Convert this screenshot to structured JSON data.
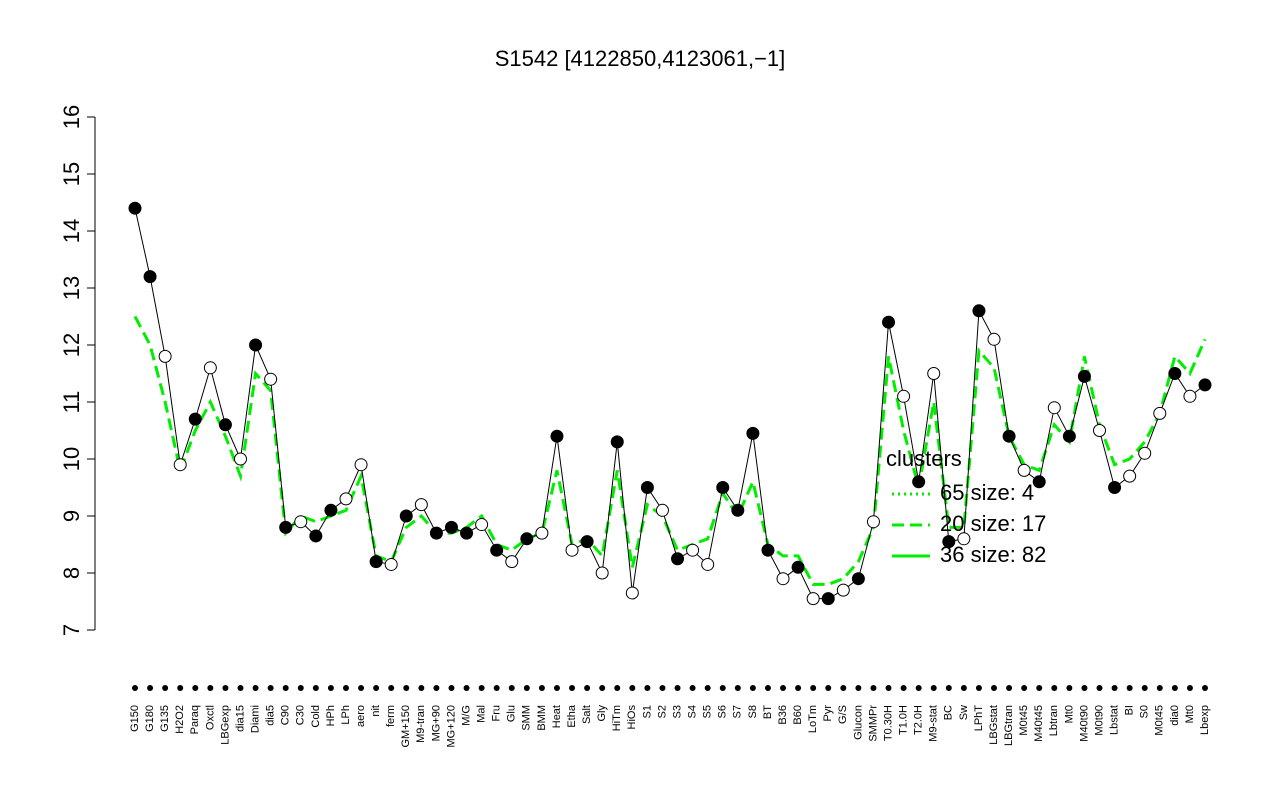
{
  "chart_data": {
    "type": "line",
    "title": "S1542 [4122850,4123061,−1]",
    "categories": [
      "G150",
      "G180",
      "G135",
      "H2O2",
      "Paraq",
      "Oxctl",
      "LBGexp",
      "dia15",
      "Diami",
      "dia5",
      "C90",
      "C30",
      "Cold",
      "HPh",
      "LPh",
      "aero",
      "nit",
      "ferm",
      "GM+150",
      "M9-tran",
      "MG+90",
      "MG+120",
      "M/G",
      "Mal",
      "Fru",
      "Glu",
      "SMM",
      "BMM",
      "Heat",
      "Etha",
      "Salt",
      "Gly",
      "HiTm",
      "HiOs",
      "S1",
      "S2",
      "S3",
      "S4",
      "S5",
      "S6",
      "S7",
      "S8",
      "BT",
      "B36",
      "B60",
      "LoTm",
      "Pyr",
      "G/S",
      "Glucon",
      "SMMPr",
      "T0.30H",
      "T1.0H",
      "T2.0H",
      "M9-stat",
      "BC",
      "Sw",
      "LPhT",
      "LBGstat",
      "LBGtran",
      "M0t45",
      "M40t45",
      "Lbtran",
      "Mt0",
      "M40t90",
      "M0t90",
      "Lbstat",
      "BI",
      "S0",
      "M0t45",
      "dia0",
      "Mt0",
      "Lbexp"
    ],
    "series": [
      {
        "color": "#000000",
        "values": [
          14.4,
          13.2,
          11.8,
          9.9,
          10.7,
          11.6,
          10.6,
          10.0,
          12.0,
          11.4,
          8.8,
          8.9,
          8.65,
          9.1,
          9.3,
          9.9,
          8.2,
          8.15,
          9.0,
          9.2,
          8.7,
          8.8,
          8.7,
          8.85,
          8.4,
          8.2,
          8.6,
          8.7,
          10.4,
          8.4,
          8.55,
          8.0,
          10.3,
          7.65,
          9.5,
          9.1,
          8.25,
          8.4,
          8.15,
          9.5,
          9.1,
          10.45,
          8.4,
          7.9,
          8.1,
          7.55,
          7.55,
          7.7,
          7.9,
          8.9,
          12.4,
          11.1,
          9.6,
          11.5,
          8.55,
          8.6,
          12.6,
          12.1,
          10.4,
          9.8,
          9.6,
          10.9,
          10.4,
          11.45,
          10.5,
          9.5,
          9.7,
          10.1,
          10.8,
          11.5,
          11.1,
          11.3
        ],
        "point_fill": [
          "black",
          "black",
          "white",
          "white",
          "black",
          "white",
          "black",
          "white",
          "black",
          "white",
          "black",
          "white",
          "black",
          "black",
          "white",
          "white",
          "black",
          "white",
          "black",
          "white",
          "black",
          "black",
          "black",
          "white",
          "black",
          "white",
          "black",
          "white",
          "black",
          "white",
          "black",
          "white",
          "black",
          "white",
          "black",
          "white",
          "black",
          "white",
          "white",
          "black",
          "black",
          "black",
          "black",
          "white",
          "black",
          "white",
          "black",
          "white",
          "black",
          "white",
          "black",
          "white",
          "black",
          "white",
          "black",
          "white",
          "black",
          "white",
          "black",
          "white",
          "black",
          "white",
          "black",
          "black",
          "white",
          "black",
          "white",
          "white",
          "white",
          "black",
          "white",
          "black"
        ]
      },
      {
        "color": "#00ee00",
        "dash": "dashed",
        "values": [
          12.5,
          12.0,
          11.0,
          9.8,
          10.5,
          11.0,
          10.4,
          9.7,
          11.5,
          11.2,
          8.7,
          9.0,
          8.9,
          9.0,
          9.1,
          9.7,
          8.3,
          8.2,
          8.8,
          9.0,
          8.7,
          8.7,
          8.8,
          9.0,
          8.5,
          8.4,
          8.6,
          8.7,
          9.8,
          8.5,
          8.6,
          8.3,
          9.8,
          8.1,
          9.2,
          9.0,
          8.4,
          8.5,
          8.6,
          9.4,
          9.0,
          9.6,
          8.5,
          8.3,
          8.3,
          7.8,
          7.8,
          7.9,
          8.2,
          8.8,
          11.8,
          10.5,
          9.5,
          11.0,
          8.8,
          8.8,
          11.9,
          11.6,
          10.4,
          9.9,
          9.8,
          10.6,
          10.3,
          11.8,
          10.6,
          9.9,
          10.0,
          10.3,
          10.8,
          11.8,
          11.5,
          12.1
        ]
      }
    ],
    "ylim": [
      7,
      16
    ],
    "yticks": [
      7,
      8,
      9,
      10,
      11,
      12,
      13,
      14,
      15,
      16
    ],
    "legend": {
      "title": "clusters",
      "entries": [
        {
          "label": "65 size: 4",
          "style": "dotted"
        },
        {
          "label": "20 size: 17",
          "style": "dashed"
        },
        {
          "label": "36 size: 82",
          "style": "solid"
        }
      ]
    }
  }
}
